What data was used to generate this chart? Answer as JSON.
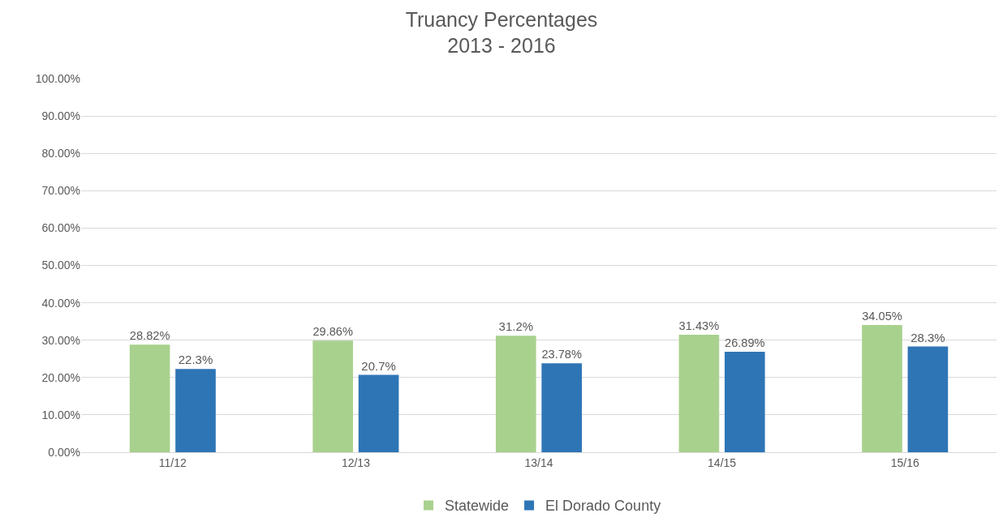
{
  "chart_data": {
    "type": "bar",
    "title": "Truancy Percentages\n2013 - 2016",
    "categories": [
      "11/12",
      "12/13",
      "13/14",
      "14/15",
      "15/16"
    ],
    "series": [
      {
        "name": "Statewide",
        "color": "#a9d18e",
        "values": [
          28.82,
          29.86,
          31.2,
          31.43,
          34.05
        ],
        "value_labels": [
          "28.82%",
          "29.86%",
          "31.2%",
          "31.43%",
          "34.05%"
        ]
      },
      {
        "name": "El Dorado County",
        "color": "#2e75b6",
        "values": [
          22.3,
          20.7,
          23.78,
          26.89,
          28.3
        ],
        "value_labels": [
          "22.3%",
          "20.7%",
          "23.78%",
          "26.89%",
          "28.3%"
        ]
      }
    ],
    "ylim": [
      0,
      100
    ],
    "yticks": [
      {
        "value": 0,
        "label": "0.00%"
      },
      {
        "value": 10,
        "label": "10.00%"
      },
      {
        "value": 20,
        "label": "20.00%"
      },
      {
        "value": 30,
        "label": "30.00%"
      },
      {
        "value": 40,
        "label": "40.00%"
      },
      {
        "value": 50,
        "label": "50.00%"
      },
      {
        "value": 60,
        "label": "60.00%"
      },
      {
        "value": 70,
        "label": "70.00%"
      },
      {
        "value": 80,
        "label": "80.00%"
      },
      {
        "value": 90,
        "label": "90.00%"
      },
      {
        "value": 100,
        "label": "100.00%"
      }
    ],
    "grid": "y",
    "legend": "bottom"
  }
}
